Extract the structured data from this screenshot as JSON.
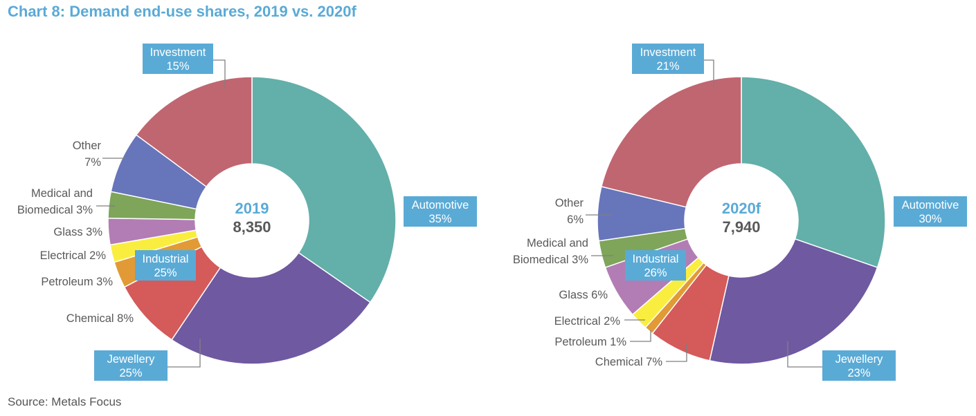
{
  "title": "Chart 8: Demand end-use shares, 2019 vs. 2020f",
  "source": "Source: Metals Focus",
  "chart_data": [
    {
      "type": "pie",
      "subtype": "donut",
      "center_label": "2019",
      "center_value": "8,350",
      "categories": [
        "Automotive",
        "Jewellery",
        "Chemical",
        "Petroleum",
        "Electrical",
        "Glass",
        "Medical and Biomedical",
        "Other",
        "Investment"
      ],
      "values": [
        35,
        25,
        8,
        3,
        2,
        3,
        3,
        7,
        15
      ],
      "labels": [
        "Automotive 35%",
        "Jewellery 25%",
        "Chemical 8%",
        "Petroleum 3%",
        "Electrical 2%",
        "Glass 3%",
        "Medical and Biomedical 3%",
        "Other 7%",
        "Investment 15%"
      ],
      "group_label": {
        "name": "Industrial",
        "value": "25%"
      },
      "colors": [
        "#63afa9",
        "#6f59a1",
        "#d55a5a",
        "#e19a35",
        "#f9ee3f",
        "#b27db4",
        "#7ea55a",
        "#6775bb",
        "#c06671"
      ]
    },
    {
      "type": "pie",
      "subtype": "donut",
      "center_label": "2020f",
      "center_value": "7,940",
      "categories": [
        "Automotive",
        "Jewellery",
        "Chemical",
        "Petroleum",
        "Electrical",
        "Glass",
        "Medical and Biomedical",
        "Other",
        "Investment"
      ],
      "values": [
        30,
        23,
        7,
        1,
        2,
        6,
        3,
        6,
        21
      ],
      "labels": [
        "Automotive 30%",
        "Jewellery 23%",
        "Chemical 7%",
        "Petroleum 1%",
        "Electrical 2%",
        "Glass 6%",
        "Medical and Biomedical 3%",
        "Other 6%",
        "Investment 21%"
      ],
      "group_label": {
        "name": "Industrial",
        "value": "26%"
      },
      "colors": [
        "#63afa9",
        "#6f59a1",
        "#d55a5a",
        "#e19a35",
        "#f9ee3f",
        "#b27db4",
        "#7ea55a",
        "#6775bb",
        "#c06671"
      ]
    }
  ],
  "label_box_color": "#5aaad6"
}
